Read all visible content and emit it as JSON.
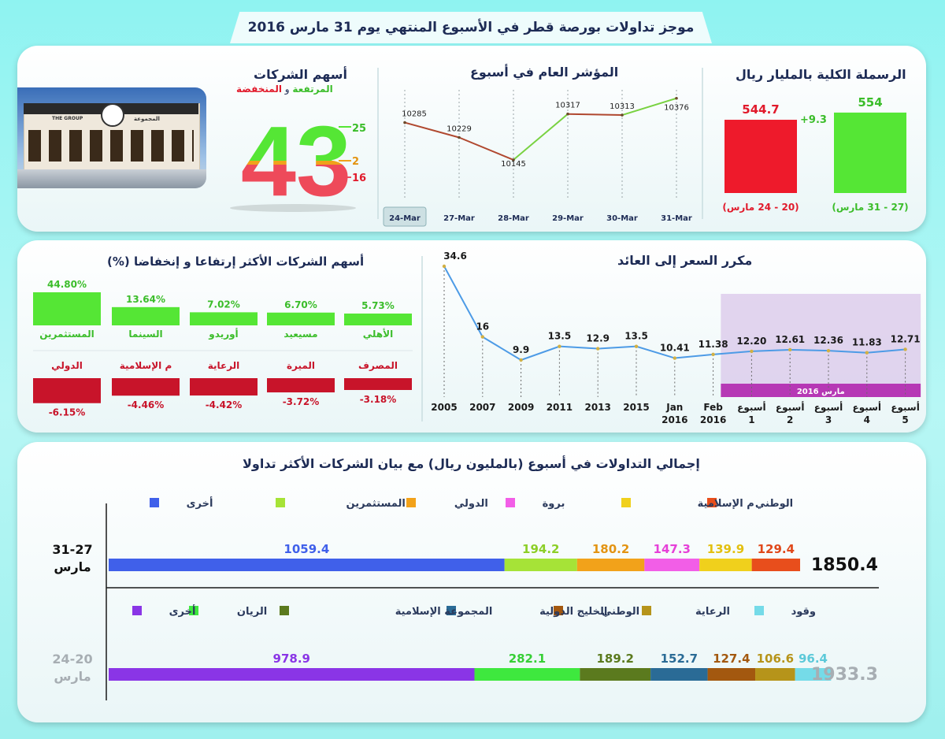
{
  "title": "موجز تداولات بورصة قطر في الأسبوع المنتهي يوم 31 مارس 2016",
  "colors": {
    "up": "#55e635",
    "down": "#e11a2b",
    "line_up": "#79d241",
    "line_down": "#b0482f",
    "marker": "#d1b043",
    "pe_line": "#4d9be6",
    "band": "#b638b5"
  },
  "market_cap": {
    "title": "الرسملة الكلية بالمليار ريال",
    "change": "+9.3",
    "bars": [
      {
        "value": 544.7,
        "label": "544.7",
        "period": "(20 - 24 مارس)",
        "color": "#ee1a2b"
      },
      {
        "value": 554,
        "label": "554",
        "period": "(27 - 31 مارس)",
        "color": "#55e635"
      }
    ]
  },
  "index_chart": {
    "title": "المؤشر العام في أسبوع",
    "categories": [
      "24-Mar",
      "27-Mar",
      "28-Mar",
      "29-Mar",
      "30-Mar",
      "31-Mar"
    ],
    "values": [
      10285,
      10229,
      10145,
      10317,
      10313,
      10376
    ],
    "value_labels": [
      "10285",
      "10229",
      "10145",
      "10317",
      "10313",
      "10376"
    ]
  },
  "companies": {
    "title": "أسهم الشركات",
    "subtitle_up": "المرتفعة",
    "subtitle_and": " و ",
    "subtitle_down": "المنخفضة",
    "total": "43",
    "up": "25",
    "unchanged": "2",
    "down": "16",
    "photo_sign": "THE GROUP",
    "photo_sign_ar": "المجموعة"
  },
  "movers": {
    "title": "أسهم الشركات الأكثر إرتفاعا و إنخفاضا  (%)",
    "gainers": [
      {
        "name": "المستثمرين",
        "pct": "44.80%",
        "value": 44.8
      },
      {
        "name": "السينما",
        "pct": "13.64%",
        "value": 13.64
      },
      {
        "name": "أوريدو",
        "pct": "7.02%",
        "value": 7.02
      },
      {
        "name": "مسيعيد",
        "pct": "6.70%",
        "value": 6.7
      },
      {
        "name": "الأهلي",
        "pct": "5.73%",
        "value": 5.73
      }
    ],
    "losers": [
      {
        "name": "الدولي",
        "pct": "-6.15%",
        "value": -6.15
      },
      {
        "name": "م الإسلامية",
        "pct": "-4.46%",
        "value": -4.46
      },
      {
        "name": "الرعاية",
        "pct": "-4.42%",
        "value": -4.42
      },
      {
        "name": "الميرة",
        "pct": "-3.72%",
        "value": -3.72
      },
      {
        "name": "المصرف",
        "pct": "-3.18%",
        "value": -3.18
      }
    ]
  },
  "chart_data": [
    {
      "type": "line",
      "title": "المؤشر العام في أسبوع",
      "x": [
        "24-Mar",
        "27-Mar",
        "28-Mar",
        "29-Mar",
        "30-Mar",
        "31-Mar"
      ],
      "series": [
        {
          "values": [
            10285,
            10229,
            10145,
            10317,
            10313,
            10376
          ]
        }
      ]
    },
    {
      "type": "line",
      "title": "مكرر السعر إلى العائد",
      "x": [
        "2005",
        "2007",
        "2009",
        "2011",
        "2013",
        "2015",
        "Jan 2016",
        "Feb 2016",
        "أسبوع 1",
        "أسبوع 2",
        "أسبوع 3",
        "أسبوع 4",
        "أسبوع 5"
      ],
      "series": [
        {
          "values": [
            34.6,
            16,
            9.9,
            13.5,
            12.9,
            13.5,
            10.41,
            11.38,
            12.2,
            12.61,
            12.36,
            11.83,
            12.71
          ]
        }
      ]
    },
    {
      "type": "bar",
      "title": "الرسملة الكلية بالمليار ريال",
      "categories": [
        "(20 - 24 مارس)",
        "(27 - 31 مارس)"
      ],
      "values": [
        544.7,
        554
      ]
    },
    {
      "type": "bar",
      "title": "أسهم الشركات الأكثر إرتفاعا و إنخفاضا  (%)",
      "categories": [
        "المستثمرين",
        "السينما",
        "أوريدو",
        "مسيعيد",
        "الأهلي",
        "الدولي",
        "م الإسلامية",
        "الرعاية",
        "الميرة",
        "المصرف"
      ],
      "values": [
        44.8,
        13.64,
        7.02,
        6.7,
        5.73,
        -6.15,
        -4.46,
        -4.42,
        -3.72,
        -3.18
      ]
    },
    {
      "type": "bar",
      "title": "إجمالي التداولات في أسبوع (بالمليون ريال) مع  بيان الشركات الأكثر تداولا",
      "categories": [
        "31-27 مارس",
        "24-20 مارس"
      ],
      "series": [
        {
          "name": "الوطني",
          "values": [
            129.4,
            null
          ]
        },
        {
          "name": "م الإسلامية",
          "values": [
            139.9,
            null
          ]
        },
        {
          "name": "بروة",
          "values": [
            147.3,
            null
          ]
        },
        {
          "name": "الدولي",
          "values": [
            180.2,
            null
          ]
        },
        {
          "name": "المستثمرين",
          "values": [
            194.2,
            null
          ]
        },
        {
          "name": "وقود",
          "values": [
            null,
            96.4
          ]
        },
        {
          "name": "الرعاية",
          "values": [
            null,
            106.6
          ]
        },
        {
          "name": "الوطني",
          "values": [
            null,
            127.4
          ]
        },
        {
          "name": "الخليج الدولية",
          "values": [
            null,
            152.7
          ]
        },
        {
          "name": "المجموعة الإسلامية",
          "values": [
            null,
            189.2
          ]
        },
        {
          "name": "الريان",
          "values": [
            null,
            282.1
          ]
        },
        {
          "name": "أخرى",
          "values": [
            1059.4,
            978.9
          ]
        }
      ],
      "totals": [
        1850.4,
        1933.3
      ]
    }
  ],
  "pe_chart": {
    "title": "مكرر السعر إلى العائد",
    "points": [
      {
        "x1": "2005",
        "x2": "",
        "value": 34.6,
        "label": "34.6"
      },
      {
        "x1": "2007",
        "x2": "",
        "value": 16,
        "label": "16"
      },
      {
        "x1": "2009",
        "x2": "",
        "value": 9.9,
        "label": "9.9"
      },
      {
        "x1": "2011",
        "x2": "",
        "value": 13.5,
        "label": "13.5"
      },
      {
        "x1": "2013",
        "x2": "",
        "value": 12.9,
        "label": "12.9"
      },
      {
        "x1": "2015",
        "x2": "",
        "value": 13.5,
        "label": "13.5"
      },
      {
        "x1": "Jan",
        "x2": "2016",
        "value": 10.41,
        "label": "10.41"
      },
      {
        "x1": "Feb",
        "x2": "2016",
        "value": 11.38,
        "label": "11.38"
      },
      {
        "x1": "أسبوع",
        "x2": "1",
        "value": 12.2,
        "label": "12.20"
      },
      {
        "x1": "أسبوع",
        "x2": "2",
        "value": 12.61,
        "label": "12.61"
      },
      {
        "x1": "أسبوع",
        "x2": "3",
        "value": 12.36,
        "label": "12.36"
      },
      {
        "x1": "أسبوع",
        "x2": "4",
        "value": 11.83,
        "label": "11.83"
      },
      {
        "x1": "أسبوع",
        "x2": "5",
        "value": 12.71,
        "label": "12.71"
      }
    ],
    "band_label": "مارس 2016"
  },
  "volume": {
    "title": "إجمالي التداولات في أسبوع (بالمليون ريال) مع  بيان الشركات الأكثر تداولا",
    "rows": [
      {
        "period": "31-27",
        "month": "مارس",
        "total": "1850.4",
        "legend": [
          {
            "name": "الوطني",
            "color": "#e84e1c"
          },
          {
            "name": "م الإسلامية",
            "color": "#f0d01c"
          },
          {
            "name": "بروة",
            "color": "#f25ee7"
          },
          {
            "name": "الدولي",
            "color": "#f2a21a"
          },
          {
            "name": "المستثمرين",
            "color": "#a6e337"
          },
          {
            "name": "أخرى",
            "color": "#4060ea"
          }
        ],
        "segments": [
          {
            "name": "أخرى",
            "value": 1059.4,
            "label": "1059.4",
            "color": "#4060ea",
            "text": "#4060ea"
          },
          {
            "name": "المستثمرين",
            "value": 194.2,
            "label": "194.2",
            "color": "#a6e337",
            "text": "#8ccf27"
          },
          {
            "name": "الدولي",
            "value": 180.2,
            "label": "180.2",
            "color": "#f2a21a",
            "text": "#e39412"
          },
          {
            "name": "بروة",
            "value": 147.3,
            "label": "147.3",
            "color": "#f25ee7",
            "text": "#e640d8"
          },
          {
            "name": "م الإسلامية",
            "value": 139.9,
            "label": "139.9",
            "color": "#f0d01c",
            "text": "#e3c010"
          },
          {
            "name": "الوطني",
            "value": 129.4,
            "label": "129.4",
            "color": "#e84e1c",
            "text": "#e0481a"
          }
        ]
      },
      {
        "period": "24-20",
        "month": "مارس",
        "total": "1933.3",
        "legend": [
          {
            "name": "وقود",
            "color": "#75dbe8"
          },
          {
            "name": "الرعاية",
            "color": "#b6941a"
          },
          {
            "name": "الوطني",
            "color": "#a3580f"
          },
          {
            "name": "الخليج الدولية",
            "color": "#2a6b96"
          },
          {
            "name": "المجموعة الإسلامية",
            "color": "#5b7a1e"
          },
          {
            "name": "الريان",
            "color": "#3ee83e"
          },
          {
            "name": "أخرى",
            "color": "#8a35e6"
          }
        ],
        "segments": [
          {
            "name": "أخرى",
            "value": 978.9,
            "label": "978.9",
            "color": "#8a35e6",
            "text": "#8a35e6"
          },
          {
            "name": "الريان",
            "value": 282.1,
            "label": "282.1",
            "color": "#3ee83e",
            "text": "#36cf36"
          },
          {
            "name": "المجموعة الإسلامية",
            "value": 189.2,
            "label": "189.2",
            "color": "#5b7a1e",
            "text": "#5b7a1e"
          },
          {
            "name": "الخليج الدولية",
            "value": 152.7,
            "label": "152.7",
            "color": "#2a6b96",
            "text": "#2a6b96"
          },
          {
            "name": "الوطني",
            "value": 127.4,
            "label": "127.4",
            "color": "#a3580f",
            "text": "#a3580f"
          },
          {
            "name": "الرعاية",
            "value": 106.6,
            "label": "106.6",
            "color": "#b6941a",
            "text": "#b6941a"
          },
          {
            "name": "وقود",
            "value": 96.4,
            "label": "96.4",
            "color": "#75dbe8",
            "text": "#5cc9d9"
          }
        ]
      }
    ]
  }
}
